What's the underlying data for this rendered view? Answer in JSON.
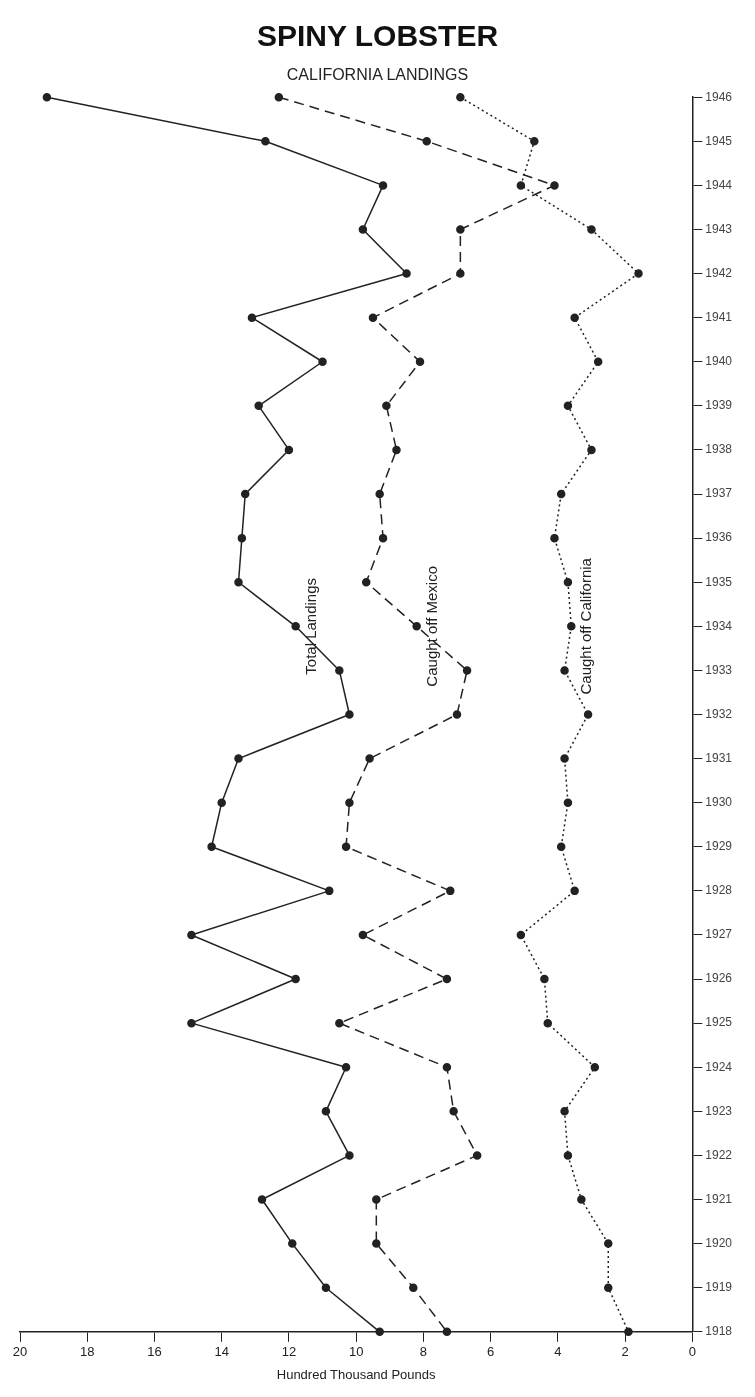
{
  "chart_data": {
    "type": "line",
    "title": "SPINY LOBSTER",
    "subtitle": "CALIFORNIA LANDINGS",
    "xlabel": "Hundred Thousand Pounds",
    "orientation": "horizontal",
    "categories": [
      "1946",
      "1945",
      "1944",
      "1943",
      "1942",
      "1941",
      "1940",
      "1939",
      "1938",
      "1937",
      "1936",
      "1935",
      "1934",
      "1933",
      "1932",
      "1931",
      "1930",
      "1929",
      "1928",
      "1927",
      "1926",
      "1925",
      "1924",
      "1923",
      "1922",
      "1921",
      "1920",
      "1919",
      "1918"
    ],
    "series": [
      {
        "name": "Total Landings",
        "color": "#222222",
        "line_style": "solid",
        "values": [
          19.2,
          12.7,
          9.2,
          9.8,
          8.5,
          13.1,
          11.0,
          12.9,
          12.0,
          13.3,
          13.4,
          13.5,
          11.8,
          10.5,
          10.2,
          13.5,
          14.0,
          14.3,
          10.8,
          14.9,
          11.8,
          14.9,
          10.3,
          10.9,
          10.2,
          12.8,
          11.9,
          10.9,
          9.3
        ]
      },
      {
        "name": "Caught off Mexico",
        "color": "#222222",
        "line_style": "dashed",
        "values": [
          12.3,
          7.9,
          4.1,
          6.9,
          6.9,
          9.5,
          8.1,
          9.1,
          8.8,
          9.3,
          9.2,
          9.7,
          8.2,
          6.7,
          7.0,
          9.6,
          10.2,
          10.3,
          7.2,
          9.8,
          7.3,
          10.5,
          7.3,
          7.1,
          6.4,
          9.4,
          9.4,
          8.3,
          7.3
        ]
      },
      {
        "name": "Caught off California",
        "color": "#222222",
        "line_style": "dotted",
        "values": [
          6.9,
          4.7,
          5.1,
          3.0,
          1.6,
          3.5,
          2.8,
          3.7,
          3.0,
          3.9,
          4.1,
          3.7,
          3.6,
          3.8,
          3.1,
          3.8,
          3.7,
          3.9,
          3.5,
          5.1,
          4.4,
          4.3,
          2.9,
          3.8,
          3.7,
          3.3,
          2.5,
          2.5,
          1.9
        ]
      }
    ],
    "xlim": [
      20,
      0
    ],
    "xticks": [
      0,
      2,
      4,
      6,
      8,
      10,
      12,
      14,
      16,
      18,
      20
    ],
    "grid": false,
    "legend": false,
    "marker": "circle"
  }
}
